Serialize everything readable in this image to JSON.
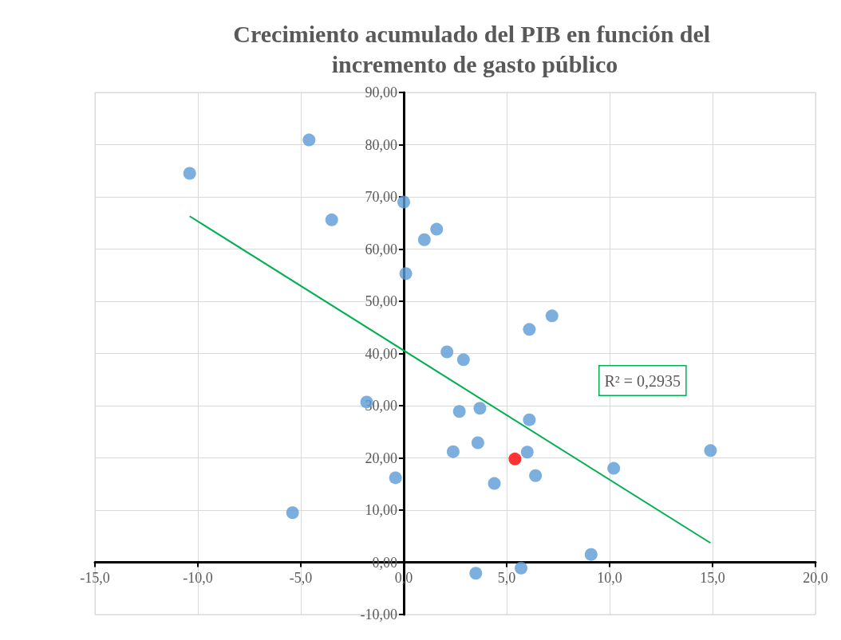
{
  "chart_data": {
    "type": "scatter",
    "title": "Crecimiento acumulado del PIB en función del incremento de gasto público",
    "xlim": [
      -15,
      20
    ],
    "xticks": [
      {
        "value": -15,
        "label": "-15,0"
      },
      {
        "value": -10,
        "label": "-10,0"
      },
      {
        "value": -5,
        "label": "-5,0"
      },
      {
        "value": 0,
        "label": "0,0"
      },
      {
        "value": 5,
        "label": "5,0"
      },
      {
        "value": 10,
        "label": "10,0"
      },
      {
        "value": 15,
        "label": "15,0"
      },
      {
        "value": 20,
        "label": "20,0"
      }
    ],
    "ylim": [
      -10,
      90
    ],
    "yticks": [
      {
        "value": -10,
        "label": "-10,00"
      },
      {
        "value": 0,
        "label": "0,00"
      },
      {
        "value": 10,
        "label": "10,00"
      },
      {
        "value": 20,
        "label": "20,00"
      },
      {
        "value": 30,
        "label": "30,00"
      },
      {
        "value": 40,
        "label": "40,00"
      },
      {
        "value": 50,
        "label": "50,00"
      },
      {
        "value": 60,
        "label": "60,00"
      },
      {
        "value": 70,
        "label": "70,00"
      },
      {
        "value": 80,
        "label": "80,00"
      },
      {
        "value": 90,
        "label": "90,00"
      }
    ],
    "grid": true,
    "marker": "circle",
    "series": [
      {
        "color": "#5b9bd5",
        "x": [
          -10.4,
          -4.6,
          -3.5,
          0.0,
          1.0,
          1.6,
          0.1,
          7.2,
          6.1,
          2.1,
          2.9,
          -1.8,
          2.7,
          3.7,
          6.1,
          3.6,
          2.4,
          6.0,
          14.9,
          10.2,
          6.4,
          -0.4,
          4.4,
          -5.4,
          9.1,
          3.5,
          5.7
        ],
        "values": [
          74.5,
          80.9,
          65.6,
          69.0,
          61.8,
          63.8,
          55.3,
          47.2,
          44.6,
          40.3,
          38.8,
          30.7,
          28.9,
          29.5,
          27.3,
          22.9,
          21.2,
          21.1,
          21.4,
          18.0,
          16.6,
          16.2,
          15.1,
          9.5,
          1.5,
          -2.1,
          -1.1
        ]
      },
      {
        "color": "#ff0000",
        "x": [
          5.4
        ],
        "values": [
          19.8
        ]
      },
      {
        "type": "line",
        "color": "#00b050",
        "x": [
          -10.4,
          14.9
        ],
        "values": [
          66.3,
          3.7
        ],
        "marker": "none",
        "line_style": "solid"
      }
    ],
    "annotations": [
      "R² = 0,2935"
    ]
  }
}
